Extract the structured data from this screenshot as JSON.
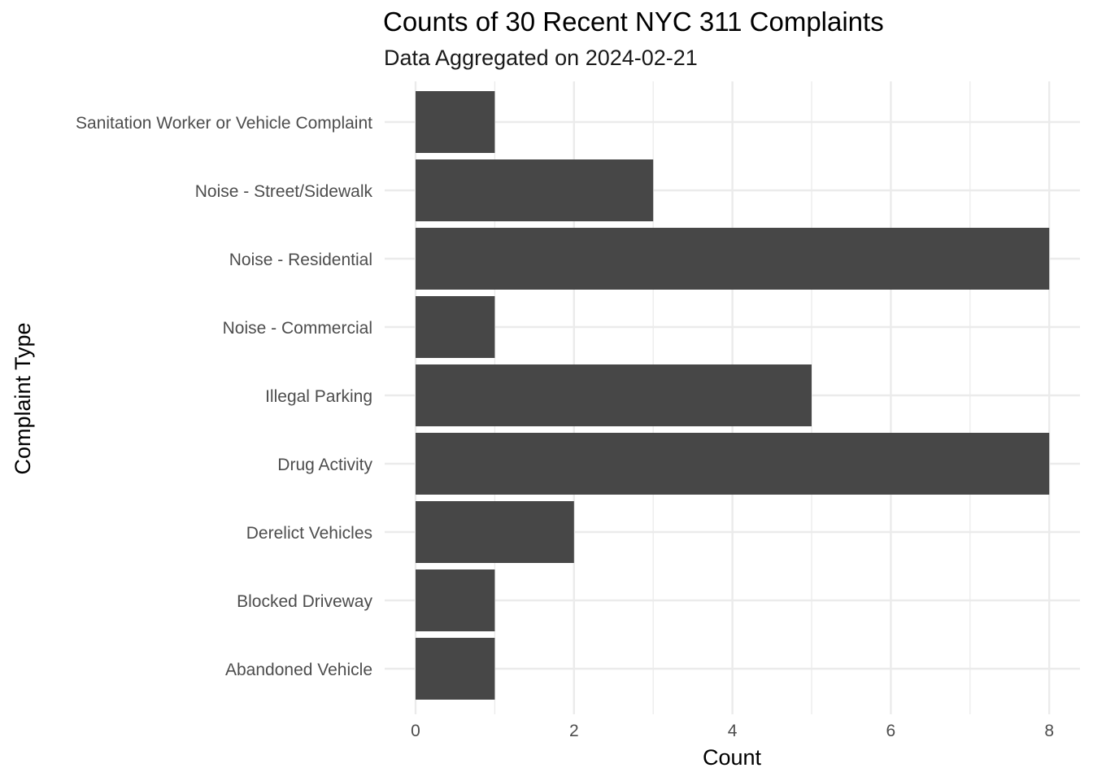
{
  "chart_data": {
    "type": "bar",
    "orientation": "horizontal",
    "title": "Counts of 30 Recent NYC 311 Complaints",
    "subtitle": "Data Aggregated on 2024-02-21",
    "xlabel": "Count",
    "ylabel": "Complaint Type",
    "categories": [
      "Sanitation Worker or Vehicle Complaint",
      "Noise - Street/Sidewalk",
      "Noise - Residential",
      "Noise - Commercial",
      "Illegal Parking",
      "Drug Activity",
      "Derelict Vehicles",
      "Blocked Driveway",
      "Abandoned Vehicle"
    ],
    "values": [
      1,
      3,
      8,
      1,
      5,
      8,
      2,
      1,
      1
    ],
    "xlim": [
      0,
      8.4
    ],
    "xticks": [
      "0",
      "2",
      "4",
      "6",
      "8"
    ],
    "grid": true,
    "bar_color": "#474747",
    "grid_color": "#ebebeb"
  }
}
